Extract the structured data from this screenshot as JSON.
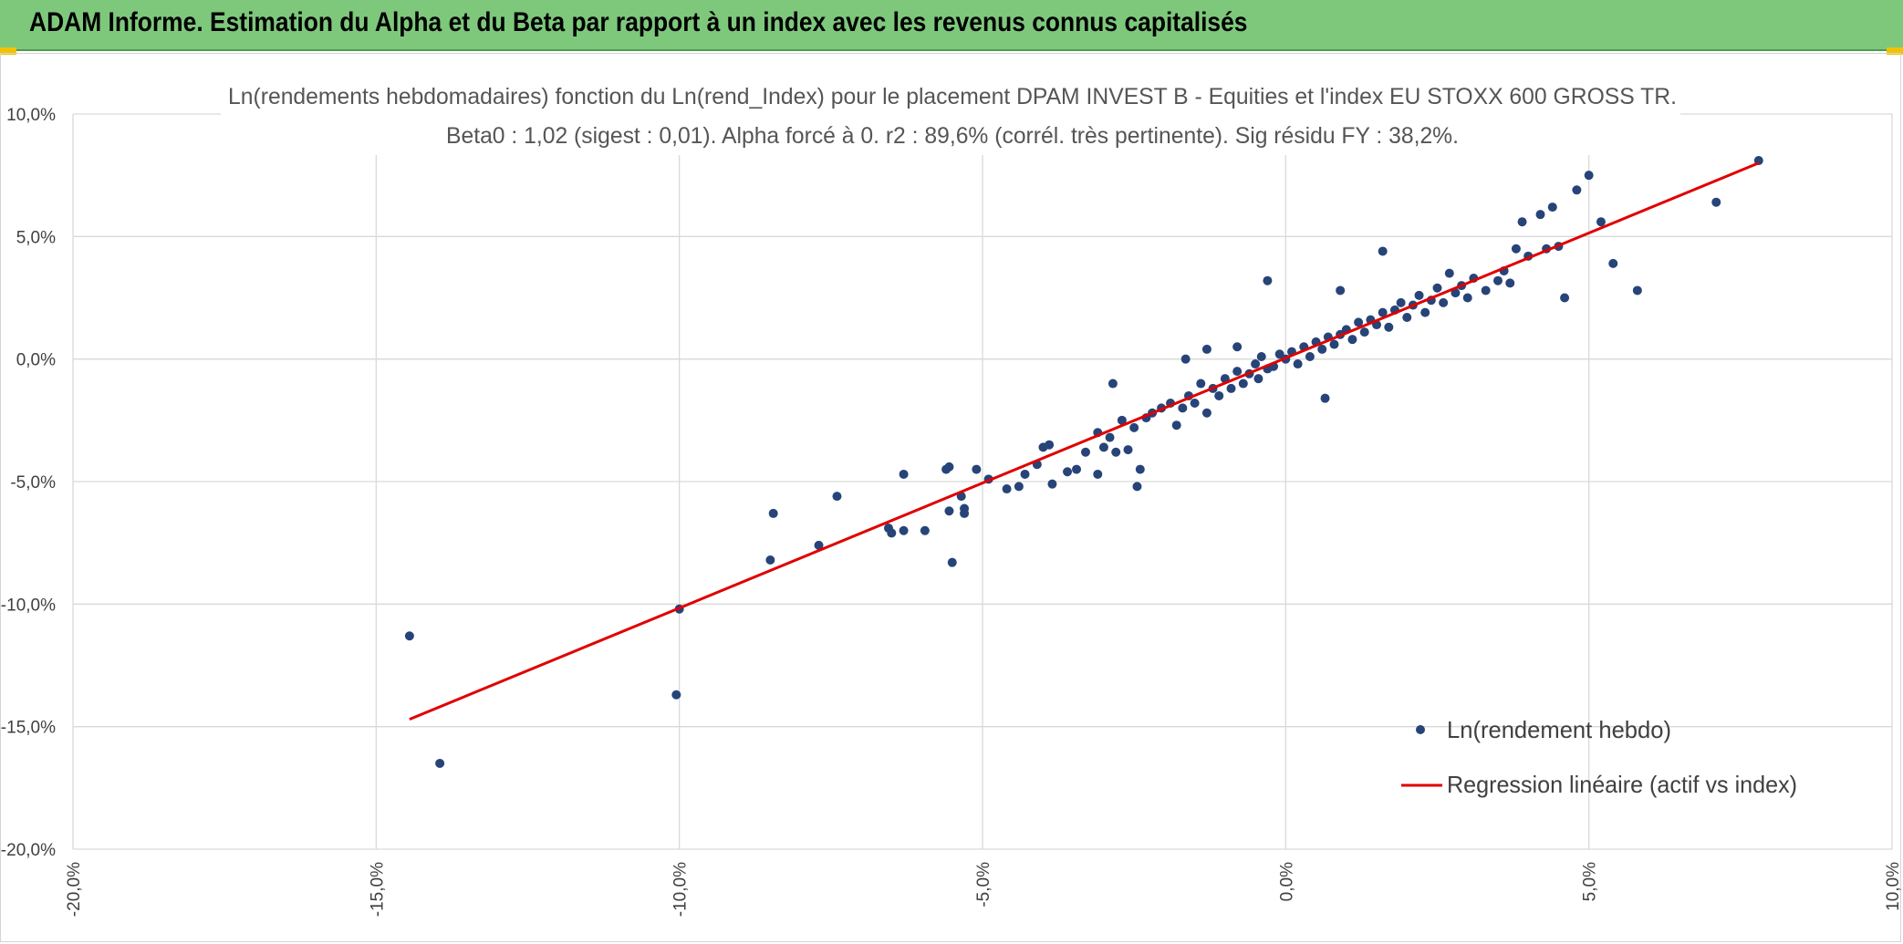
{
  "header": {
    "title": "ADAM Informe. Estimation du Alpha et du Beta par rapport à un index avec les revenus connus capitalisés"
  },
  "colors": {
    "header_bg": "#7ec87c",
    "scatter": "#264478",
    "regression": "#e00000",
    "grid": "#d9d9d9",
    "accent": "#f2c200"
  },
  "chart_data": {
    "type": "scatter",
    "title": "Ln(rendements hebdomadaires) fonction du Ln(rend_Index) pour le placement DPAM INVEST B - Equities  et l'index EU STOXX 600 GROSS TR.",
    "subtitle": "Beta0 : 1,02 (sigest : 0,01). Alpha forcé à 0. r2 : 89,6% (corrél. très pertinente). Sig résidu FY : 38,2%.",
    "xlabel": "",
    "ylabel": "",
    "xlim": [
      -20,
      10
    ],
    "ylim": [
      -20,
      10
    ],
    "x_ticks": [
      -20,
      -15,
      -10,
      -5,
      0,
      5,
      10
    ],
    "y_ticks": [
      -20,
      -15,
      -10,
      -5,
      0,
      5,
      10
    ],
    "x_tick_labels": [
      "-20,0%",
      "-15,0%",
      "-10,0%",
      "-5,0%",
      "0,0%",
      "5,0%",
      "10,0%"
    ],
    "y_tick_labels": [
      "-20,0%",
      "-15,0%",
      "-10,0%",
      "-5,0%",
      "0,0%",
      "5,0%",
      "10,0%"
    ],
    "grid": true,
    "legend": {
      "position": "bottom-right",
      "entries": [
        "Ln(rendement hebdo)",
        "Regression linéaire (actif vs index)"
      ]
    },
    "series": [
      {
        "name": "Ln(rendement hebdo)",
        "kind": "scatter",
        "points": [
          [
            -14.45,
            -11.3
          ],
          [
            -13.95,
            -16.5
          ],
          [
            -10.0,
            -10.2
          ],
          [
            -10.05,
            -13.7
          ],
          [
            -8.45,
            -6.3
          ],
          [
            -8.5,
            -8.2
          ],
          [
            -7.7,
            -7.6
          ],
          [
            -7.4,
            -5.6
          ],
          [
            -6.55,
            -6.9
          ],
          [
            -6.5,
            -7.1
          ],
          [
            -6.3,
            -4.7
          ],
          [
            -6.3,
            -7.0
          ],
          [
            -5.95,
            -7.0
          ],
          [
            -5.6,
            -4.5
          ],
          [
            -5.55,
            -4.4
          ],
          [
            -5.55,
            -6.2
          ],
          [
            -5.5,
            -8.3
          ],
          [
            -5.35,
            -5.6
          ],
          [
            -5.3,
            -6.1
          ],
          [
            -5.3,
            -6.3
          ],
          [
            -5.1,
            -4.5
          ],
          [
            -4.9,
            -4.9
          ],
          [
            -4.6,
            -5.3
          ],
          [
            -4.4,
            -5.2
          ],
          [
            -4.3,
            -4.7
          ],
          [
            -4.1,
            -4.3
          ],
          [
            -4.0,
            -3.6
          ],
          [
            -3.9,
            -3.5
          ],
          [
            -3.85,
            -5.1
          ],
          [
            -3.6,
            -4.6
          ],
          [
            -3.45,
            -4.5
          ],
          [
            -3.3,
            -3.8
          ],
          [
            -3.1,
            -4.7
          ],
          [
            -3.1,
            -3.0
          ],
          [
            -3.0,
            -3.6
          ],
          [
            -2.9,
            -3.2
          ],
          [
            -2.8,
            -3.8
          ],
          [
            -2.7,
            -2.5
          ],
          [
            -2.6,
            -3.7
          ],
          [
            -2.5,
            -2.8
          ],
          [
            -2.45,
            -5.2
          ],
          [
            -2.4,
            -4.5
          ],
          [
            -2.3,
            -2.4
          ],
          [
            -2.2,
            -2.2
          ],
          [
            -2.05,
            -2.0
          ],
          [
            -1.9,
            -1.8
          ],
          [
            -1.8,
            -2.7
          ],
          [
            -1.7,
            -2.0
          ],
          [
            -1.6,
            -1.5
          ],
          [
            -1.5,
            -1.8
          ],
          [
            -1.4,
            -1.0
          ],
          [
            -1.3,
            -2.2
          ],
          [
            -1.2,
            -1.2
          ],
          [
            -1.1,
            -1.5
          ],
          [
            -1.0,
            -0.8
          ],
          [
            -0.9,
            -1.2
          ],
          [
            -0.8,
            -0.5
          ],
          [
            -0.7,
            -1.0
          ],
          [
            -0.6,
            -0.6
          ],
          [
            -0.5,
            -0.2
          ],
          [
            -0.45,
            -0.8
          ],
          [
            -0.4,
            0.1
          ],
          [
            -0.3,
            -0.4
          ],
          [
            -0.2,
            -0.3
          ],
          [
            -0.1,
            0.2
          ],
          [
            0.0,
            0.0
          ],
          [
            0.1,
            0.3
          ],
          [
            0.2,
            -0.2
          ],
          [
            0.3,
            0.5
          ],
          [
            0.4,
            0.1
          ],
          [
            0.5,
            0.7
          ],
          [
            0.6,
            0.4
          ],
          [
            0.7,
            0.9
          ],
          [
            0.8,
            0.6
          ],
          [
            0.9,
            1.0
          ],
          [
            1.0,
            1.2
          ],
          [
            1.1,
            0.8
          ],
          [
            1.2,
            1.5
          ],
          [
            1.3,
            1.1
          ],
          [
            1.4,
            1.6
          ],
          [
            1.5,
            1.4
          ],
          [
            1.6,
            1.9
          ],
          [
            1.7,
            1.3
          ],
          [
            1.8,
            2.0
          ],
          [
            1.9,
            2.3
          ],
          [
            2.0,
            1.7
          ],
          [
            2.1,
            2.2
          ],
          [
            2.2,
            2.6
          ],
          [
            2.3,
            1.9
          ],
          [
            2.4,
            2.4
          ],
          [
            2.5,
            2.9
          ],
          [
            2.6,
            2.3
          ],
          [
            2.7,
            3.5
          ],
          [
            2.8,
            2.7
          ],
          [
            2.9,
            3.0
          ],
          [
            3.0,
            2.5
          ],
          [
            3.1,
            3.3
          ],
          [
            3.3,
            2.8
          ],
          [
            3.5,
            3.2
          ],
          [
            3.6,
            3.6
          ],
          [
            3.7,
            3.1
          ],
          [
            3.8,
            4.5
          ],
          [
            3.9,
            5.6
          ],
          [
            4.0,
            4.2
          ],
          [
            4.2,
            5.9
          ],
          [
            4.3,
            4.5
          ],
          [
            4.4,
            6.2
          ],
          [
            4.5,
            4.6
          ],
          [
            4.6,
            2.5
          ],
          [
            4.8,
            6.9
          ],
          [
            5.0,
            7.5
          ],
          [
            5.2,
            5.6
          ],
          [
            5.4,
            3.9
          ],
          [
            5.8,
            2.8
          ],
          [
            7.1,
            6.4
          ],
          [
            7.8,
            8.1
          ],
          [
            -0.3,
            3.2
          ],
          [
            0.65,
            -1.6
          ],
          [
            1.6,
            4.4
          ],
          [
            -1.65,
            0.0
          ],
          [
            -2.85,
            -1.0
          ],
          [
            -0.8,
            0.5
          ],
          [
            -1.3,
            0.4
          ],
          [
            0.9,
            2.8
          ]
        ]
      },
      {
        "name": "Regression linéaire (actif vs index)",
        "kind": "line",
        "x": [
          -14.45,
          7.8
        ],
        "y": [
          -14.7,
          8.0
        ]
      }
    ]
  }
}
